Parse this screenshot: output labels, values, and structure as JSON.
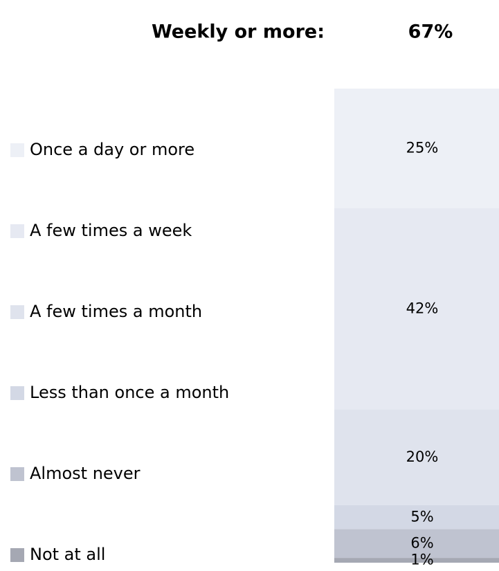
{
  "chart_data": {
    "type": "bar",
    "stacked": true,
    "annotation": {
      "label": "Weekly or more:",
      "value": 67,
      "value_label": "67%"
    },
    "ylim": [
      0,
      99
    ],
    "series": [
      {
        "name": "Once a day or more",
        "color": "#edf0f6",
        "values": [
          25
        ],
        "value_labels": [
          "25%"
        ]
      },
      {
        "name": "A few times a week",
        "color": "#e6e9f2",
        "values": [
          42
        ],
        "value_labels": [
          "42%"
        ]
      },
      {
        "name": "A few times a month",
        "color": "#dfe3ed",
        "values": [
          20
        ],
        "value_labels": [
          "20%"
        ]
      },
      {
        "name": "Less than once a month",
        "color": "#d3d8e5",
        "values": [
          5
        ],
        "value_labels": [
          "5%"
        ]
      },
      {
        "name": "Almost never",
        "color": "#bfc3d0",
        "values": [
          6
        ],
        "value_labels": [
          "6%"
        ]
      },
      {
        "name": "Not at all",
        "color": "#a5a8b3",
        "values": [
          1
        ],
        "value_labels": [
          "1%"
        ]
      }
    ]
  }
}
